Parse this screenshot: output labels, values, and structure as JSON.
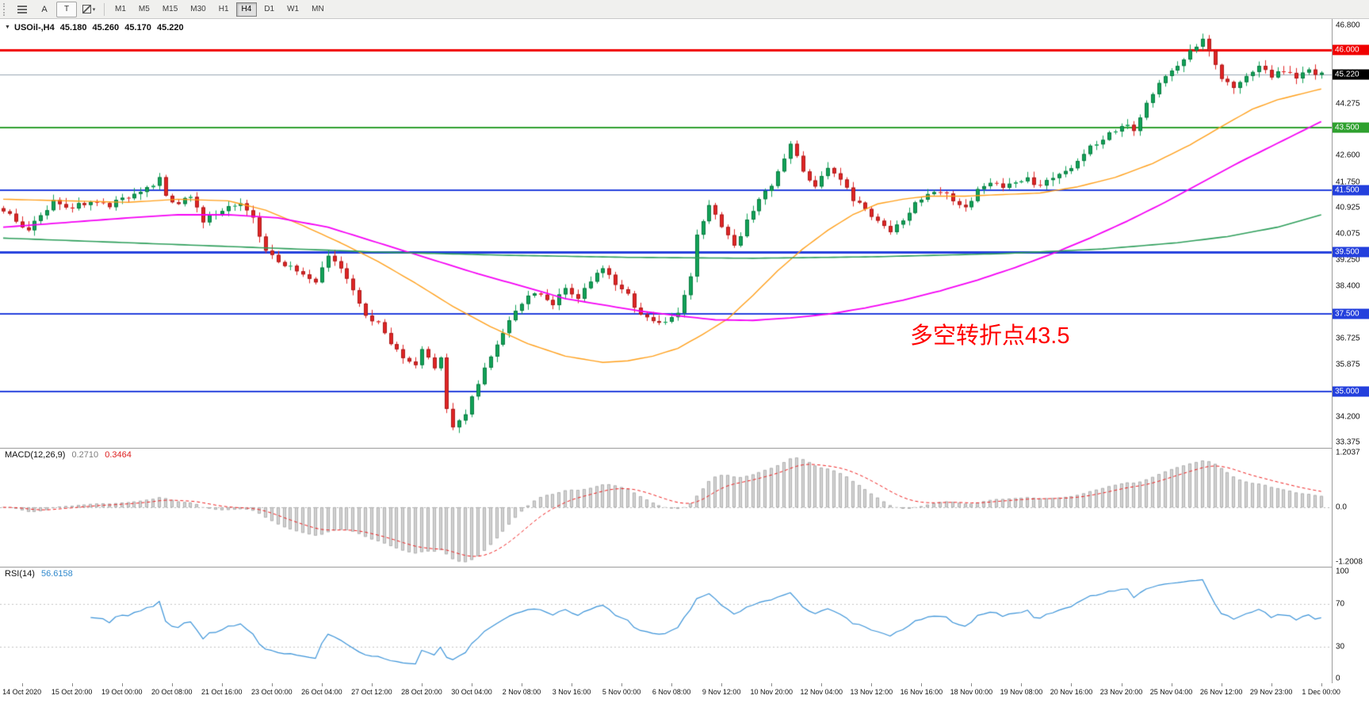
{
  "toolbar": {
    "text_tool_label": "A",
    "label_tool_label": "T",
    "shapes_caret": "▾",
    "timeframes": [
      {
        "label": "M1",
        "active": false
      },
      {
        "label": "M5",
        "active": false
      },
      {
        "label": "M15",
        "active": false
      },
      {
        "label": "M30",
        "active": false
      },
      {
        "label": "H1",
        "active": false
      },
      {
        "label": "H4",
        "active": true
      },
      {
        "label": "D1",
        "active": false
      },
      {
        "label": "W1",
        "active": false
      },
      {
        "label": "MN",
        "active": false
      }
    ]
  },
  "quote": {
    "expand_icon": "▼",
    "symbol_period": "USOil-,H4",
    "open": "45.180",
    "high": "45.260",
    "low": "45.170",
    "close": "45.220"
  },
  "annotation": {
    "text": "多空转折点43.5",
    "color": "#ff0000"
  },
  "price_axis": {
    "ticks": [
      {
        "label": "46.800",
        "value": 46.8
      },
      {
        "label": "44.275",
        "value": 44.275
      },
      {
        "label": "42.600",
        "value": 42.6
      },
      {
        "label": "41.750",
        "value": 41.75
      },
      {
        "label": "40.925",
        "value": 40.925
      },
      {
        "label": "40.075",
        "value": 40.075
      },
      {
        "label": "39.250",
        "value": 39.25
      },
      {
        "label": "38.400",
        "value": 38.4
      },
      {
        "label": "36.725",
        "value": 36.725
      },
      {
        "label": "35.875",
        "value": 35.875
      },
      {
        "label": "34.200",
        "value": 34.2
      },
      {
        "label": "33.375",
        "value": 33.375
      }
    ],
    "levels": [
      {
        "label": "46.000",
        "price": 46.0,
        "color": "#f00000",
        "width": 3
      },
      {
        "label": "43.500",
        "price": 43.5,
        "color": "#2fa12f",
        "width": 2
      },
      {
        "label": "41.500",
        "price": 41.5,
        "color": "#2440dd",
        "width": 2
      },
      {
        "label": "39.500",
        "price": 39.5,
        "color": "#2440dd",
        "width": 3
      },
      {
        "label": "37.500",
        "price": 37.5,
        "color": "#2440dd",
        "width": 2
      },
      {
        "label": "35.000",
        "price": 35.0,
        "color": "#2440dd",
        "width": 2
      }
    ],
    "current": {
      "label": "45.220",
      "price": 45.22,
      "badge_bg": "#000000",
      "line_color": "#9aa7b2"
    }
  },
  "time_axis": {
    "labels": [
      "14 Oct 2020",
      "15 Oct 20:00",
      "19 Oct 00:00",
      "20 Oct 08:00",
      "21 Oct 16:00",
      "23 Oct 00:00",
      "26 Oct 04:00",
      "27 Oct 12:00",
      "28 Oct 20:00",
      "30 Oct 04:00",
      "2 Nov 08:00",
      "3 Nov 16:00",
      "5 Nov 00:00",
      "6 Nov 08:00",
      "9 Nov 12:00",
      "10 Nov 20:00",
      "12 Nov 04:00",
      "13 Nov 12:00",
      "16 Nov 16:00",
      "18 Nov 00:00",
      "19 Nov 08:00",
      "20 Nov 16:00",
      "23 Nov 20:00",
      "25 Nov 04:00",
      "26 Nov 12:00",
      "29 Nov 23:00",
      "1 Dec 00:00"
    ]
  },
  "indicators": {
    "macd": {
      "name": "MACD(12,26,9)",
      "value_main": "0.2710",
      "value_signal": "0.3464",
      "fast": 12,
      "slow": 26,
      "signal": 9,
      "scale": [
        {
          "label": "1.2037",
          "value": 1.2037
        },
        {
          "label": "0.0",
          "value": 0
        },
        {
          "label": "-1.2008",
          "value": -1.2008
        }
      ],
      "histogram_color": "#d2d2d2",
      "histogram_border": "#a0a0a0",
      "signal_color": "#ee2020"
    },
    "rsi": {
      "name": "RSI(14)",
      "value": "56.6158",
      "period": 14,
      "scale": [
        {
          "label": "100",
          "value": 100
        },
        {
          "label": "70",
          "value": 70
        },
        {
          "label": "30",
          "value": 30
        },
        {
          "label": "0",
          "value": 0
        }
      ],
      "levels": [
        70,
        30
      ],
      "color": "#3b93d8"
    }
  },
  "chart_data": {
    "type": "candlestick",
    "symbol": "USOil-",
    "period": "H4",
    "bars": 212,
    "y_range": [
      33.2,
      47.0
    ],
    "grid": false,
    "colors": {
      "up": "#12a258",
      "down": "#e02525",
      "up_border": "#0b7a41",
      "down_border": "#a81c1c"
    },
    "price_path": [
      [
        0,
        40.85
      ],
      [
        2,
        40.55
      ],
      [
        4,
        40.15
      ],
      [
        6,
        40.75
      ],
      [
        8,
        41.1
      ],
      [
        11,
        40.95
      ],
      [
        14,
        41.1
      ],
      [
        17,
        41.0
      ],
      [
        20,
        41.3
      ],
      [
        23,
        41.55
      ],
      [
        25,
        41.85
      ],
      [
        26,
        41.3
      ],
      [
        28,
        41.05
      ],
      [
        30,
        41.3
      ],
      [
        32,
        40.5
      ],
      [
        34,
        40.75
      ],
      [
        36,
        41.0
      ],
      [
        38,
        41.05
      ],
      [
        40,
        40.55
      ],
      [
        42,
        39.55
      ],
      [
        44,
        39.2
      ],
      [
        46,
        39.0
      ],
      [
        48,
        38.75
      ],
      [
        50,
        38.6
      ],
      [
        52,
        39.4
      ],
      [
        54,
        39.0
      ],
      [
        56,
        38.3
      ],
      [
        58,
        37.5
      ],
      [
        60,
        37.2
      ],
      [
        62,
        36.55
      ],
      [
        64,
        36.05
      ],
      [
        66,
        35.8
      ],
      [
        67,
        36.4
      ],
      [
        69,
        35.75
      ],
      [
        70,
        36.05
      ],
      [
        71,
        34.45
      ],
      [
        72,
        33.8
      ],
      [
        74,
        34.35
      ],
      [
        76,
        35.3
      ],
      [
        78,
        36.2
      ],
      [
        80,
        36.9
      ],
      [
        82,
        37.6
      ],
      [
        84,
        38.05
      ],
      [
        86,
        38.2
      ],
      [
        88,
        37.8
      ],
      [
        90,
        38.35
      ],
      [
        92,
        38.0
      ],
      [
        94,
        38.6
      ],
      [
        96,
        39.0
      ],
      [
        98,
        38.5
      ],
      [
        100,
        38.1
      ],
      [
        102,
        37.45
      ],
      [
        104,
        37.3
      ],
      [
        106,
        37.25
      ],
      [
        108,
        37.5
      ],
      [
        110,
        38.7
      ],
      [
        111,
        40.0
      ],
      [
        113,
        41.05
      ],
      [
        115,
        40.3
      ],
      [
        117,
        39.65
      ],
      [
        119,
        40.5
      ],
      [
        121,
        41.2
      ],
      [
        123,
        41.7
      ],
      [
        125,
        42.55
      ],
      [
        126,
        43.0
      ],
      [
        128,
        42.1
      ],
      [
        130,
        41.6
      ],
      [
        132,
        42.2
      ],
      [
        134,
        41.9
      ],
      [
        136,
        41.2
      ],
      [
        138,
        40.9
      ],
      [
        140,
        40.5
      ],
      [
        142,
        40.2
      ],
      [
        144,
        40.55
      ],
      [
        146,
        41.05
      ],
      [
        148,
        41.3
      ],
      [
        150,
        41.5
      ],
      [
        152,
        41.2
      ],
      [
        154,
        40.9
      ],
      [
        156,
        41.45
      ],
      [
        158,
        41.75
      ],
      [
        160,
        41.6
      ],
      [
        162,
        41.7
      ],
      [
        164,
        41.85
      ],
      [
        166,
        41.6
      ],
      [
        168,
        41.9
      ],
      [
        170,
        42.05
      ],
      [
        172,
        42.5
      ],
      [
        174,
        42.85
      ],
      [
        176,
        43.15
      ],
      [
        178,
        43.4
      ],
      [
        180,
        43.6
      ],
      [
        181,
        43.45
      ],
      [
        183,
        44.25
      ],
      [
        185,
        44.95
      ],
      [
        187,
        45.3
      ],
      [
        189,
        45.75
      ],
      [
        191,
        46.15
      ],
      [
        192,
        46.3
      ],
      [
        193,
        45.9
      ],
      [
        195,
        45.1
      ],
      [
        197,
        44.85
      ],
      [
        199,
        45.1
      ],
      [
        201,
        45.5
      ],
      [
        203,
        45.15
      ],
      [
        205,
        45.35
      ],
      [
        207,
        45.1
      ],
      [
        209,
        45.3
      ],
      [
        211,
        45.22
      ]
    ],
    "moving_averages": [
      {
        "name": "ma-fast",
        "color": "#ff9f1a",
        "width": 1.4,
        "path": [
          [
            0,
            41.2
          ],
          [
            10,
            41.15
          ],
          [
            20,
            41.1
          ],
          [
            28,
            41.2
          ],
          [
            36,
            41.15
          ],
          [
            42,
            40.85
          ],
          [
            48,
            40.35
          ],
          [
            54,
            39.8
          ],
          [
            60,
            39.2
          ],
          [
            66,
            38.5
          ],
          [
            72,
            37.75
          ],
          [
            78,
            37.1
          ],
          [
            84,
            36.55
          ],
          [
            90,
            36.15
          ],
          [
            96,
            35.95
          ],
          [
            100,
            36.0
          ],
          [
            104,
            36.15
          ],
          [
            108,
            36.4
          ],
          [
            112,
            36.85
          ],
          [
            116,
            37.35
          ],
          [
            120,
            38.1
          ],
          [
            124,
            38.9
          ],
          [
            128,
            39.6
          ],
          [
            132,
            40.2
          ],
          [
            136,
            40.7
          ],
          [
            140,
            41.05
          ],
          [
            144,
            41.2
          ],
          [
            148,
            41.3
          ],
          [
            154,
            41.3
          ],
          [
            160,
            41.35
          ],
          [
            166,
            41.4
          ],
          [
            172,
            41.6
          ],
          [
            178,
            41.9
          ],
          [
            184,
            42.35
          ],
          [
            190,
            42.95
          ],
          [
            196,
            43.65
          ],
          [
            200,
            44.1
          ],
          [
            204,
            44.4
          ],
          [
            208,
            44.6
          ],
          [
            211,
            44.75
          ]
        ]
      },
      {
        "name": "ma-mid",
        "color": "#f400f4",
        "width": 1.8,
        "path": [
          [
            0,
            40.3
          ],
          [
            10,
            40.45
          ],
          [
            20,
            40.6
          ],
          [
            28,
            40.7
          ],
          [
            36,
            40.7
          ],
          [
            44,
            40.6
          ],
          [
            52,
            40.3
          ],
          [
            60,
            39.8
          ],
          [
            68,
            39.3
          ],
          [
            76,
            38.8
          ],
          [
            84,
            38.35
          ],
          [
            90,
            38.0
          ],
          [
            96,
            37.8
          ],
          [
            102,
            37.6
          ],
          [
            108,
            37.45
          ],
          [
            114,
            37.32
          ],
          [
            120,
            37.3
          ],
          [
            126,
            37.38
          ],
          [
            132,
            37.5
          ],
          [
            138,
            37.7
          ],
          [
            144,
            37.95
          ],
          [
            150,
            38.25
          ],
          [
            156,
            38.6
          ],
          [
            162,
            39.0
          ],
          [
            168,
            39.45
          ],
          [
            174,
            39.95
          ],
          [
            180,
            40.5
          ],
          [
            186,
            41.1
          ],
          [
            192,
            41.75
          ],
          [
            198,
            42.4
          ],
          [
            204,
            43.0
          ],
          [
            211,
            43.7
          ]
        ]
      },
      {
        "name": "ma-slow",
        "color": "#2e9e5b",
        "width": 1.6,
        "path": [
          [
            0,
            39.95
          ],
          [
            20,
            39.8
          ],
          [
            40,
            39.65
          ],
          [
            60,
            39.5
          ],
          [
            80,
            39.4
          ],
          [
            100,
            39.33
          ],
          [
            120,
            39.3
          ],
          [
            140,
            39.35
          ],
          [
            160,
            39.45
          ],
          [
            176,
            39.6
          ],
          [
            188,
            39.8
          ],
          [
            196,
            40.0
          ],
          [
            204,
            40.3
          ],
          [
            211,
            40.7
          ]
        ]
      }
    ]
  }
}
